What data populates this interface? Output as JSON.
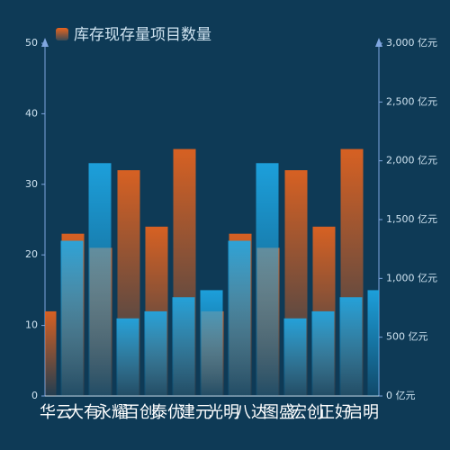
{
  "chart_data": {
    "type": "bar",
    "categories": [
      "华云",
      "大有",
      "永耀",
      "百创",
      "泰优",
      "建元",
      "光明",
      "八达",
      "图盛",
      "宏创",
      "正好",
      "启明"
    ],
    "series": [
      {
        "name": "库存现存量项目数量",
        "color": "#e8641e",
        "values": [
          12,
          23,
          21,
          32,
          24,
          35,
          12,
          23,
          21,
          32,
          24,
          35
        ]
      },
      {
        "color": "#1ea8e6",
        "axis": "y2",
        "values": [
          1320,
          1980,
          660,
          720,
          840,
          900,
          1320,
          1980,
          660,
          720,
          840,
          900
        ]
      }
    ],
    "ylim": [
      0,
      50
    ],
    "yticks": [
      0,
      10,
      20,
      30,
      40,
      50
    ],
    "y2lim": [
      0,
      3000
    ],
    "y2ticks": [
      {
        "value": 0,
        "label": "0 亿元"
      },
      {
        "value": 500,
        "label": "500 亿元"
      },
      {
        "value": 1000,
        "label": "1,000 亿元"
      },
      {
        "value": 1500,
        "label": "1,500 亿元"
      },
      {
        "value": 2000,
        "label": "2,000 亿元"
      },
      {
        "value": 2500,
        "label": "2,500 亿元"
      },
      {
        "value": 3000,
        "label": "3,000 亿元"
      }
    ]
  }
}
